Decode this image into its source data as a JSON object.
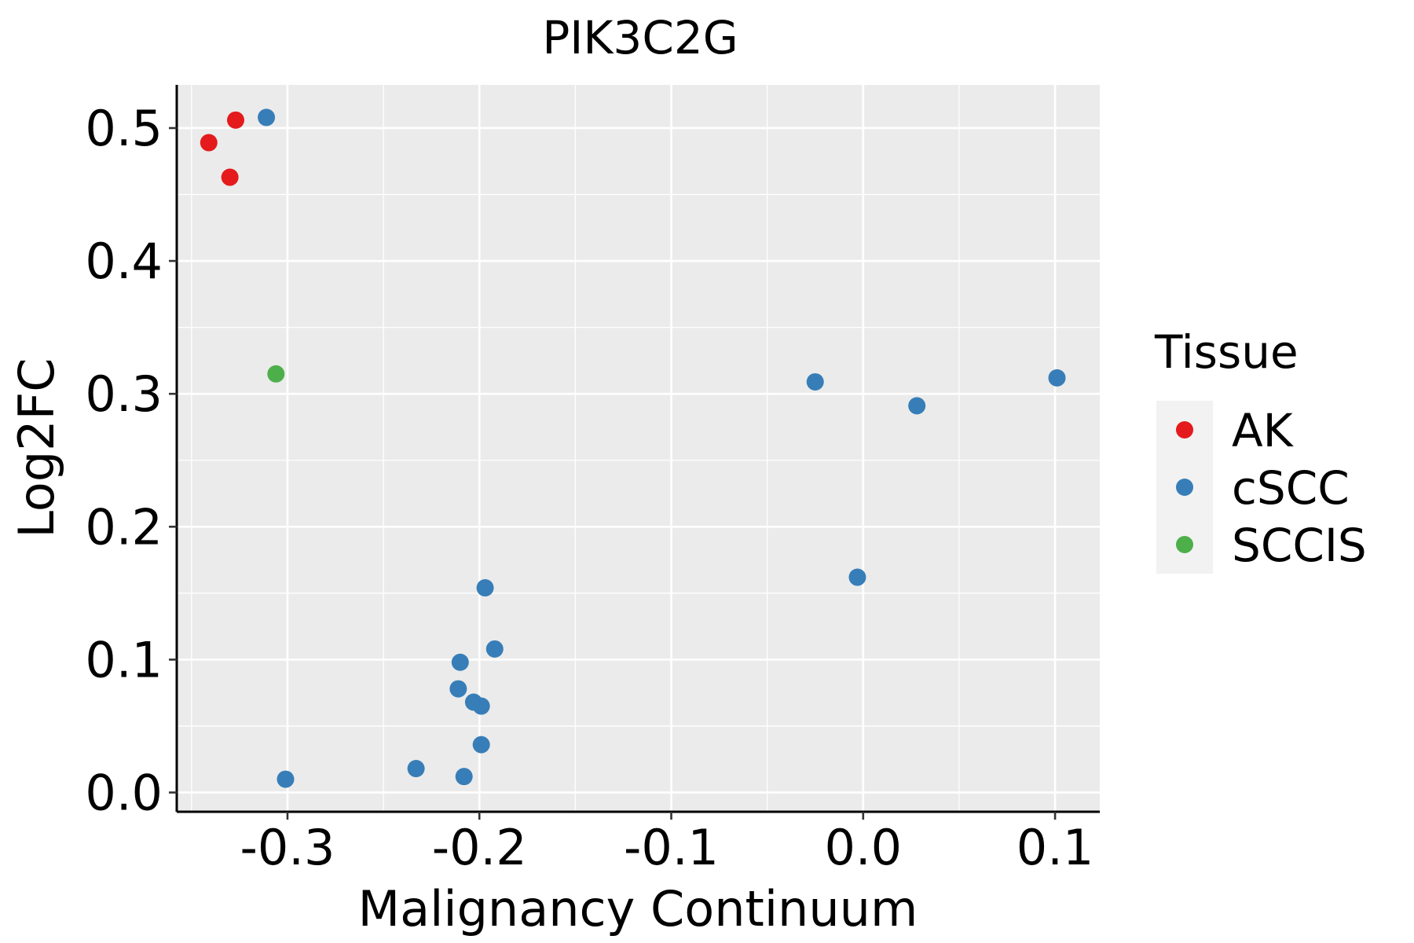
{
  "chart_data": {
    "type": "scatter",
    "title": "PIK3C2G",
    "xlabel": "Malignancy Continuum",
    "ylabel": "Log2FC",
    "xlim": [
      -0.3577,
      0.1233
    ],
    "ylim": [
      -0.0145,
      0.5325
    ],
    "x_ticks": [
      -0.3,
      -0.2,
      -0.1,
      0.0,
      0.1
    ],
    "x_tick_labels": [
      "-0.3",
      "-0.2",
      "-0.1",
      "0.0",
      "0.1"
    ],
    "y_ticks": [
      0.0,
      0.1,
      0.2,
      0.3,
      0.4,
      0.5
    ],
    "y_tick_labels": [
      "0.0",
      "0.1",
      "0.2",
      "0.3",
      "0.4",
      "0.5"
    ],
    "grid": true,
    "legend": {
      "title": "Tissue",
      "placement": "right",
      "entries": [
        {
          "label": "AK",
          "color": "#E41A1C"
        },
        {
          "label": "cSCC",
          "color": "#377EB8"
        },
        {
          "label": "SCCIS",
          "color": "#4DAF4A"
        }
      ]
    },
    "series": [
      {
        "name": "AK",
        "color": "#E41A1C",
        "points": [
          [
            -0.341,
            0.489
          ],
          [
            -0.327,
            0.506
          ],
          [
            -0.33,
            0.463
          ]
        ]
      },
      {
        "name": "cSCC",
        "color": "#377EB8",
        "points": [
          [
            -0.311,
            0.508
          ],
          [
            -0.025,
            0.309
          ],
          [
            0.028,
            0.291
          ],
          [
            0.101,
            0.312
          ],
          [
            -0.003,
            0.162
          ],
          [
            -0.197,
            0.154
          ],
          [
            -0.192,
            0.108
          ],
          [
            -0.21,
            0.098
          ],
          [
            -0.211,
            0.078
          ],
          [
            -0.203,
            0.068
          ],
          [
            -0.199,
            0.065
          ],
          [
            -0.199,
            0.036
          ],
          [
            -0.233,
            0.018
          ],
          [
            -0.208,
            0.012
          ],
          [
            -0.301,
            0.01
          ]
        ]
      },
      {
        "name": "SCCIS",
        "color": "#4DAF4A",
        "points": [
          [
            -0.306,
            0.315
          ]
        ]
      }
    ]
  }
}
